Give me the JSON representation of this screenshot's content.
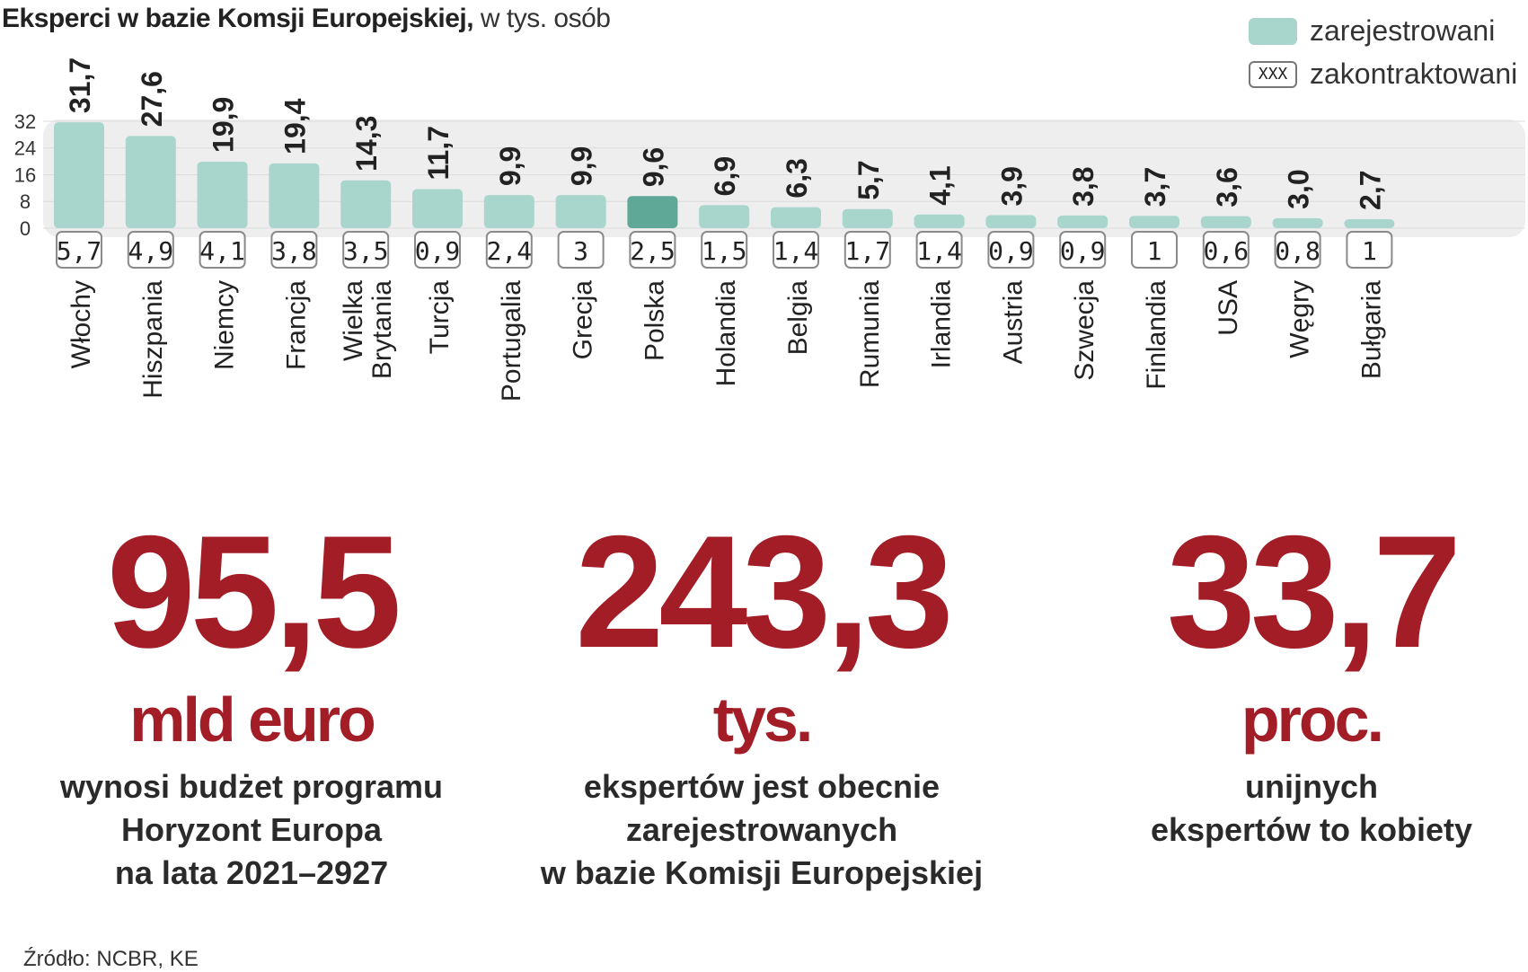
{
  "title": {
    "bold": "Eksperci w bazie Komsji Europejskiej,",
    "normal": " w tys. osób"
  },
  "legend": {
    "registered_label": "zarejestrowani",
    "contracted_label": "zakontraktowani",
    "contracted_marker": "XXX"
  },
  "colors": {
    "bar": "#a8d5cc",
    "bar_highlight": "#5fa898",
    "band": "#eeeeee",
    "accent": "#a31d27"
  },
  "chart_data": {
    "type": "bar",
    "title": "Eksperci w bazie Komsji Europejskiej, w tys. osób",
    "ylim": [
      0,
      32
    ],
    "yticks": [
      "0",
      "8",
      "16",
      "24",
      "32"
    ],
    "highlight": "Polska",
    "categories": [
      "Włochy",
      "Hiszpania",
      "Niemcy",
      "Francja",
      "Wielka Brytania",
      "Turcja",
      "Portugalia",
      "Grecja",
      "Polska",
      "Holandia",
      "Belgia",
      "Rumunia",
      "Irlandia",
      "Austria",
      "Szwecja",
      "Finlandia",
      "USA",
      "Węgry",
      "Bułgaria"
    ],
    "series": [
      {
        "name": "zarejestrowani",
        "values": [
          31.7,
          27.6,
          19.9,
          19.4,
          14.3,
          11.7,
          9.9,
          9.9,
          9.6,
          6.9,
          6.3,
          5.7,
          4.1,
          3.9,
          3.8,
          3.7,
          3.6,
          3.0,
          2.7
        ],
        "labels": [
          "31,7",
          "27,6",
          "19,9",
          "19,4",
          "14,3",
          "11,7",
          "9,9",
          "9,9",
          "9,6",
          "6,9",
          "6,3",
          "5,7",
          "4,1",
          "3,9",
          "3,8",
          "3,7",
          "3,6",
          "3,0",
          "2,7"
        ]
      },
      {
        "name": "zakontraktowani",
        "values": [
          5.7,
          4.9,
          4.1,
          3.8,
          3.5,
          0.9,
          2.4,
          3,
          2.5,
          1.5,
          1.4,
          1.7,
          1.4,
          0.9,
          0.9,
          1,
          0.6,
          0.8,
          1
        ],
        "labels": [
          "5,7",
          "4,9",
          "4,1",
          "3,8",
          "3,5",
          "0,9",
          "2,4",
          "3",
          "2,5",
          "1,5",
          "1,4",
          "1,7",
          "1,4",
          "0,9",
          "0,9",
          "1",
          "0,6",
          "0,8",
          "1"
        ]
      }
    ]
  },
  "stats": [
    {
      "value": "95,5",
      "unit": "mld euro",
      "description": [
        "wynosi budżet programu",
        "Horyzont Europa",
        "na lata 2021–2927"
      ]
    },
    {
      "value": "243,3",
      "unit": "tys.",
      "description": [
        "ekspertów jest obecnie",
        "zarejestrowanych",
        "w bazie Komisji Europejskiej"
      ]
    },
    {
      "value": "33,7",
      "unit": "proc.",
      "description": [
        "unijnych",
        "ekspertów to kobiety"
      ]
    }
  ],
  "source": "Źródło: NCBR, KE"
}
